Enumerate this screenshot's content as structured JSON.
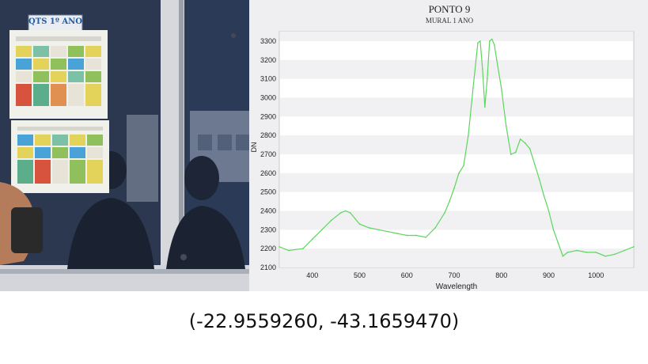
{
  "photo": {
    "poster_heading": "QTS 1º ANO",
    "poster_heading_color": "#1f5ea8",
    "board_color": "#26324a",
    "frame_color": "#d8d8dc"
  },
  "chart_data": {
    "type": "line",
    "title": "PONTO 9",
    "subtitle": "MURAL 1 ANO",
    "xlabel": "Wavelength",
    "ylabel": "DN",
    "xlim": [
      330,
      1080
    ],
    "ylim": [
      2100,
      3350
    ],
    "x_ticks": [
      400,
      500,
      600,
      700,
      800,
      900,
      1000
    ],
    "y_ticks": [
      2100,
      2200,
      2300,
      2400,
      2500,
      2600,
      2700,
      2800,
      2900,
      3000,
      3100,
      3200,
      3300
    ],
    "grid": "horizontal bands",
    "line_color": "#5cd65c",
    "series": [
      {
        "x": [
          330,
          350,
          380,
          400,
          420,
          440,
          460,
          470,
          480,
          500,
          520,
          540,
          560,
          580,
          600,
          620,
          640,
          660,
          680,
          690,
          700,
          710,
          720,
          730,
          740,
          750,
          755,
          760,
          765,
          770,
          775,
          780,
          785,
          790,
          800,
          810,
          820,
          830,
          840,
          850,
          860,
          870,
          880,
          890,
          900,
          910,
          920,
          930,
          940,
          960,
          980,
          1000,
          1020,
          1040,
          1060,
          1080
        ],
        "y": [
          2210,
          2190,
          2200,
          2250,
          2300,
          2350,
          2390,
          2400,
          2390,
          2330,
          2310,
          2300,
          2290,
          2280,
          2270,
          2270,
          2260,
          2310,
          2390,
          2450,
          2520,
          2600,
          2640,
          2800,
          3050,
          3290,
          3300,
          3150,
          2950,
          3100,
          3300,
          3310,
          3280,
          3200,
          3050,
          2850,
          2700,
          2710,
          2780,
          2760,
          2730,
          2650,
          2570,
          2480,
          2400,
          2300,
          2230,
          2160,
          2180,
          2190,
          2180,
          2180,
          2160,
          2170,
          2190,
          2210
        ]
      }
    ]
  },
  "coordinates": "(-22.9559260, -43.1659470)"
}
